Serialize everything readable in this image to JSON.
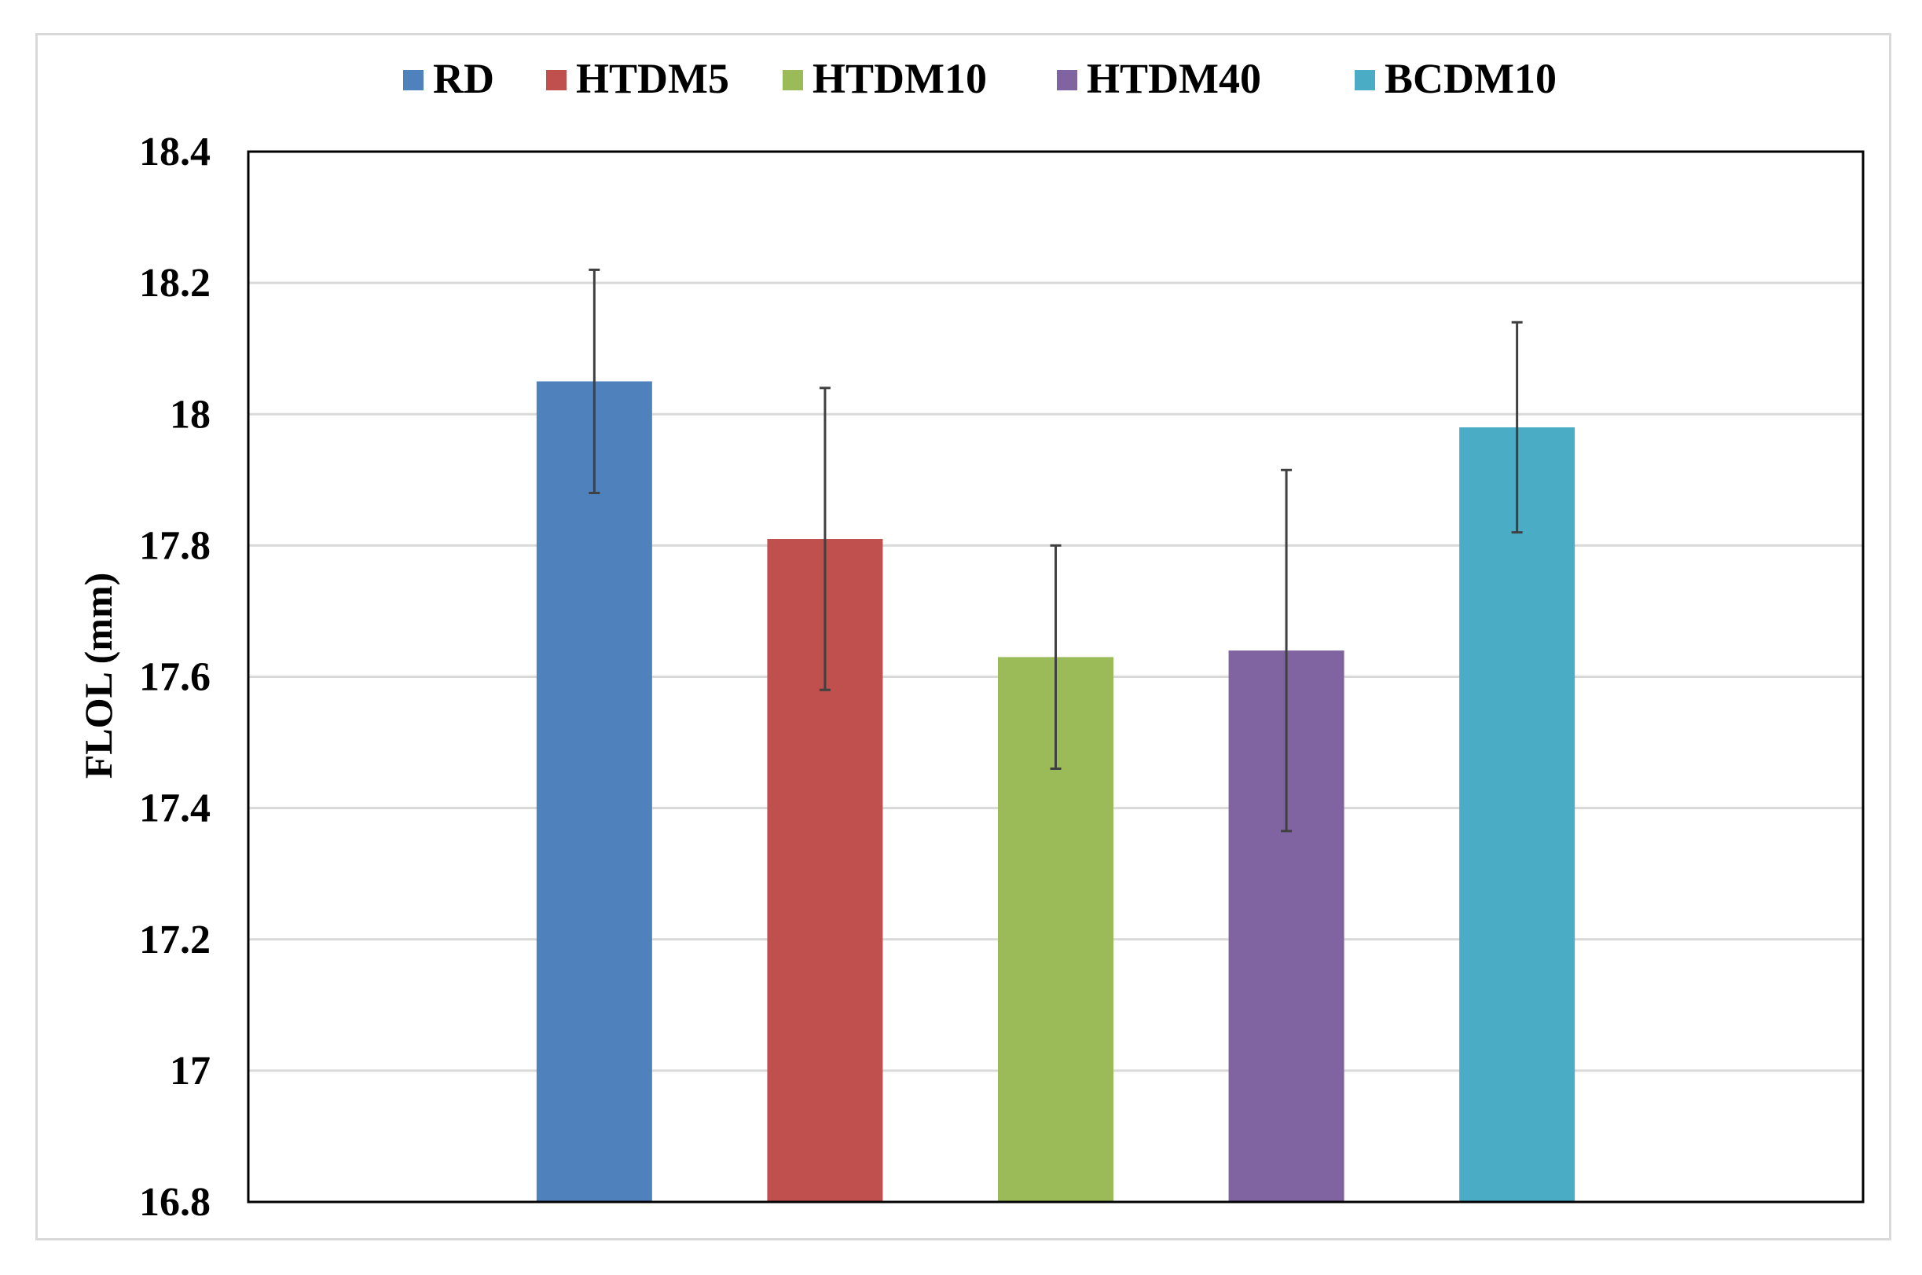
{
  "chart_data": {
    "type": "bar",
    "title": "",
    "xlabel": "",
    "ylabel": "FLOL (mm)",
    "ylim": [
      16.8,
      18.4
    ],
    "yticks": [
      "16.8",
      "17",
      "17.2",
      "17.4",
      "17.6",
      "17.8",
      "18",
      "18.2",
      "18.4"
    ],
    "tick_values": [
      16.8,
      17.0,
      17.2,
      17.4,
      17.6,
      17.8,
      18.0,
      18.2,
      18.4
    ],
    "grid": true,
    "legend_position": "top-center",
    "series": [
      {
        "name": "RD",
        "value": 18.05,
        "error": 0.17,
        "color": "#4f81bd"
      },
      {
        "name": "HTDM5",
        "value": 17.81,
        "error": 0.23,
        "color": "#c0504d"
      },
      {
        "name": "HTDM10",
        "value": 17.63,
        "error": 0.17,
        "color": "#9bbb59"
      },
      {
        "name": "HTDM40",
        "value": 17.64,
        "error": 0.275,
        "color": "#8064a2"
      },
      {
        "name": "BCDM10",
        "value": 17.98,
        "error": 0.16,
        "color": "#4bacc6"
      }
    ]
  }
}
